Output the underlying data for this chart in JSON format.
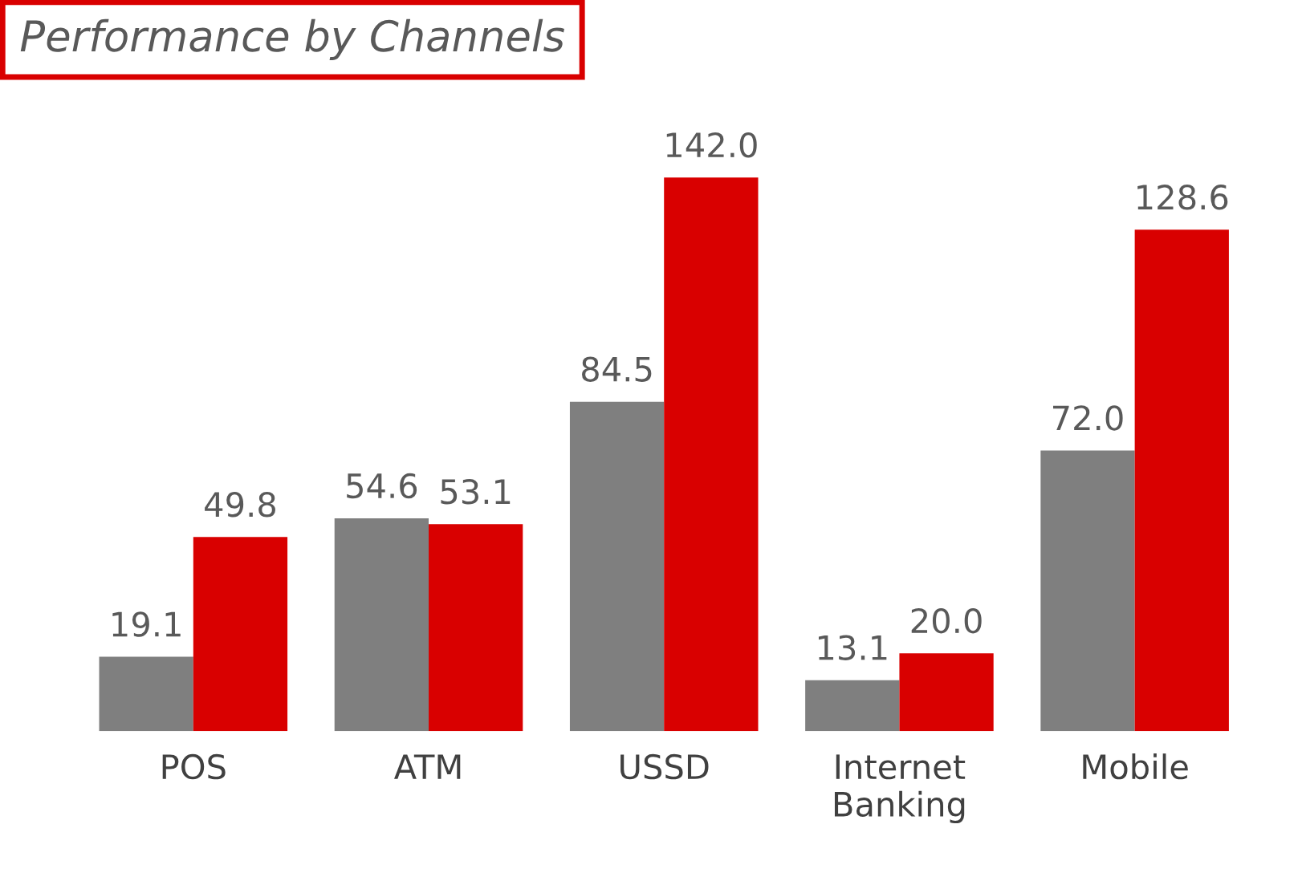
{
  "chart_data": {
    "type": "bar",
    "title": "Performance by Channels",
    "categories": [
      "POS",
      "ATM",
      "USSD",
      "Internet Banking",
      "Mobile"
    ],
    "series": [
      {
        "color": "#7f7f7f",
        "values": [
          19.1,
          54.6,
          84.5,
          13.1,
          72.0
        ],
        "value_labels": [
          "19.1",
          "54.6",
          "84.5",
          "13.1",
          "72.0"
        ]
      },
      {
        "color": "#d90000",
        "values": [
          49.8,
          53.1,
          142.0,
          20.0,
          128.6
        ],
        "value_labels": [
          "49.8",
          "53.1",
          "142.0",
          "20.0",
          "128.6"
        ]
      }
    ],
    "grid": false,
    "legend": false
  }
}
